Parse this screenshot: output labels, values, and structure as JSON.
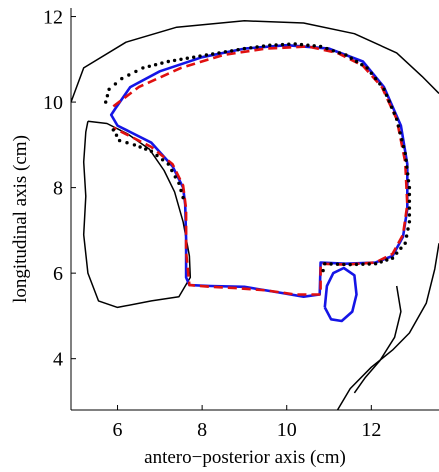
{
  "chart_data": {
    "type": "line",
    "xlabel": "antero−posterior axis (cm)",
    "ylabel": "longitudinal axis (cm)",
    "xlim": [
      4.9,
      13.6
    ],
    "ylim": [
      2.8,
      12.2
    ],
    "xticks": [
      6,
      8,
      10,
      12
    ],
    "yticks": [
      4,
      6,
      8,
      10,
      12
    ],
    "colors": {
      "blue": "#1515e6",
      "red": "#e01010",
      "black": "#000000"
    },
    "outlines": [
      {
        "name": "",
        "points": [
          [
            4.9,
            10.0
          ],
          [
            5.2,
            10.8
          ],
          [
            6.2,
            11.4
          ],
          [
            7.4,
            11.75
          ],
          [
            9.0,
            11.9
          ],
          [
            10.4,
            11.85
          ],
          [
            11.6,
            11.6
          ],
          [
            12.6,
            11.15
          ],
          [
            13.2,
            10.6
          ],
          [
            13.6,
            10.2
          ]
        ]
      },
      {
        "name": "",
        "points": [
          [
            5.3,
            9.55
          ],
          [
            5.75,
            9.5
          ],
          [
            6.25,
            9.25
          ],
          [
            6.75,
            8.9
          ],
          [
            7.1,
            8.4
          ],
          [
            7.35,
            7.9
          ],
          [
            7.55,
            7.2
          ],
          [
            7.7,
            6.4
          ],
          [
            7.72,
            5.9
          ],
          [
            7.45,
            5.45
          ],
          [
            6.8,
            5.35
          ],
          [
            6.0,
            5.2
          ],
          [
            5.55,
            5.35
          ],
          [
            5.3,
            6.0
          ],
          [
            5.2,
            6.9
          ],
          [
            5.25,
            7.8
          ],
          [
            5.2,
            8.6
          ],
          [
            5.25,
            9.3
          ],
          [
            5.3,
            9.55
          ]
        ]
      },
      {
        "name": "",
        "points": [
          [
            13.6,
            6.7
          ],
          [
            13.5,
            6.1
          ],
          [
            13.3,
            5.3
          ],
          [
            12.9,
            4.6
          ],
          [
            12.5,
            4.2
          ],
          [
            12.0,
            3.8
          ],
          [
            11.5,
            3.3
          ],
          [
            11.2,
            2.8
          ]
        ]
      },
      {
        "name": "",
        "points": [
          [
            12.6,
            5.7
          ],
          [
            12.7,
            5.1
          ],
          [
            12.55,
            4.5
          ],
          [
            12.2,
            3.95
          ],
          [
            11.85,
            3.55
          ],
          [
            11.6,
            3.2
          ]
        ]
      }
    ],
    "series": [
      {
        "name": "",
        "style": "solid-blue",
        "points": [
          [
            5.95,
            9.85
          ],
          [
            6.3,
            10.35
          ],
          [
            7.0,
            10.72
          ],
          [
            8.0,
            11.05
          ],
          [
            9.0,
            11.25
          ],
          [
            10.0,
            11.33
          ],
          [
            11.0,
            11.25
          ],
          [
            11.8,
            10.95
          ],
          [
            12.3,
            10.35
          ],
          [
            12.7,
            9.45
          ],
          [
            12.85,
            8.55
          ],
          [
            12.85,
            7.5
          ],
          [
            12.75,
            6.85
          ],
          [
            12.5,
            6.4
          ],
          [
            12.1,
            6.25
          ],
          [
            11.4,
            6.22
          ],
          [
            10.8,
            6.25
          ],
          [
            10.78,
            5.5
          ],
          [
            10.4,
            5.45
          ],
          [
            9.8,
            5.55
          ],
          [
            9.0,
            5.68
          ],
          [
            8.2,
            5.7
          ],
          [
            7.7,
            5.72
          ],
          [
            7.62,
            5.9
          ],
          [
            7.62,
            6.8
          ],
          [
            7.6,
            7.6
          ],
          [
            7.55,
            8.0
          ],
          [
            7.3,
            8.5
          ],
          [
            6.8,
            9.05
          ],
          [
            6.3,
            9.3
          ],
          [
            6.0,
            9.45
          ],
          [
            5.85,
            9.7
          ],
          [
            5.95,
            9.85
          ]
        ]
      },
      {
        "name": "",
        "style": "solid-blue",
        "points": [
          [
            10.9,
            5.2
          ],
          [
            10.95,
            5.7
          ],
          [
            11.1,
            6.0
          ],
          [
            11.35,
            6.12
          ],
          [
            11.6,
            5.95
          ],
          [
            11.65,
            5.5
          ],
          [
            11.55,
            5.1
          ],
          [
            11.3,
            4.88
          ],
          [
            11.05,
            4.92
          ],
          [
            10.9,
            5.2
          ]
        ]
      },
      {
        "name": "",
        "style": "dashed-red",
        "points": [
          [
            5.9,
            9.9
          ],
          [
            6.5,
            10.35
          ],
          [
            7.5,
            10.8
          ],
          [
            8.5,
            11.1
          ],
          [
            9.5,
            11.25
          ],
          [
            10.5,
            11.3
          ],
          [
            11.2,
            11.15
          ],
          [
            11.8,
            10.85
          ],
          [
            12.25,
            10.35
          ],
          [
            12.6,
            9.6
          ],
          [
            12.8,
            8.6
          ],
          [
            12.85,
            7.6
          ],
          [
            12.75,
            6.9
          ],
          [
            12.5,
            6.45
          ],
          [
            12.1,
            6.25
          ],
          [
            11.4,
            6.2
          ],
          [
            10.8,
            6.22
          ],
          [
            10.8,
            5.5
          ],
          [
            10.2,
            5.5
          ],
          [
            9.5,
            5.6
          ],
          [
            8.8,
            5.65
          ],
          [
            8.2,
            5.68
          ],
          [
            7.7,
            5.72
          ],
          [
            7.62,
            6.5
          ],
          [
            7.62,
            7.5
          ],
          [
            7.55,
            8.05
          ],
          [
            7.3,
            8.55
          ],
          [
            6.8,
            8.95
          ],
          [
            6.3,
            9.2
          ],
          [
            5.9,
            9.4
          ]
        ]
      },
      {
        "name": "",
        "style": "dotted-black",
        "points": [
          [
            5.72,
            10.0
          ],
          [
            5.8,
            10.3
          ],
          [
            6.1,
            10.55
          ],
          [
            6.6,
            10.8
          ],
          [
            7.2,
            10.95
          ],
          [
            7.8,
            11.05
          ],
          [
            8.4,
            11.15
          ],
          [
            9.0,
            11.25
          ],
          [
            9.6,
            11.33
          ],
          [
            10.2,
            11.36
          ],
          [
            10.8,
            11.3
          ],
          [
            11.4,
            11.1
          ],
          [
            11.9,
            10.8
          ],
          [
            12.3,
            10.3
          ],
          [
            12.6,
            9.6
          ],
          [
            12.8,
            8.8
          ],
          [
            12.9,
            8.0
          ],
          [
            12.9,
            7.2
          ],
          [
            12.8,
            6.7
          ],
          [
            12.5,
            6.35
          ],
          [
            12.1,
            6.22
          ],
          [
            11.5,
            6.2
          ],
          [
            10.9,
            6.22
          ],
          [
            10.82,
            5.9
          ],
          [
            5.9,
            9.35
          ],
          [
            6.05,
            9.1
          ],
          [
            6.4,
            9.0
          ],
          [
            6.8,
            8.85
          ],
          [
            7.2,
            8.55
          ],
          [
            7.45,
            8.1
          ],
          [
            7.6,
            7.6
          ]
        ]
      }
    ]
  }
}
